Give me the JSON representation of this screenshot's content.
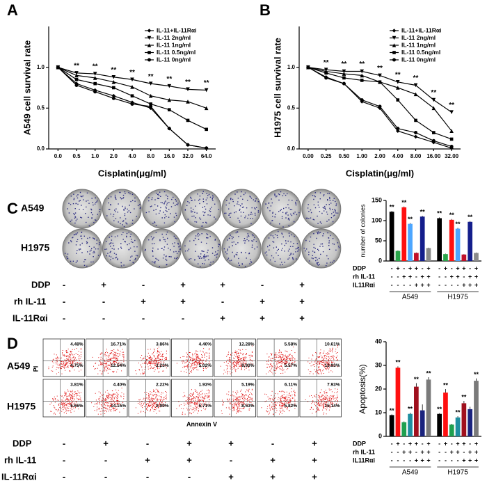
{
  "panel_labels": [
    "A",
    "B",
    "C",
    "D"
  ],
  "chart_data": [
    {
      "type": "line",
      "y_label": "A549 cell survival rate",
      "x_label": "Cisplatin(μg/ml)",
      "categories": [
        "0.0",
        "0.5",
        "1.0",
        "2.0",
        "4.0",
        "8.0",
        "16.0",
        "32.0",
        "64.0"
      ],
      "ylim": [
        0,
        1.5
      ],
      "yticks": [
        {
          "value": 0,
          "label": "0.0"
        },
        {
          "value": 0.5,
          "label": "0.5"
        },
        {
          "value": 1,
          "label": "1.0"
        }
      ],
      "legend": "upper right",
      "series": [
        {
          "name": "IL-11+IL-11Rαi",
          "color": "#000000",
          "marker": "diamond",
          "values": [
            1,
            0.8,
            0.72,
            0.65,
            0.57,
            0.5,
            0.25,
            0.05,
            0.01
          ]
        },
        {
          "name": "IL-11 2ng/ml",
          "color": "#000000",
          "marker": "triangle-down",
          "values": [
            1,
            0.93,
            0.92,
            0.88,
            0.85,
            0.8,
            0.77,
            0.73,
            0.72
          ]
        },
        {
          "name": "IL-11 1ng/ml",
          "color": "#000000",
          "marker": "triangle-up",
          "values": [
            1,
            0.9,
            0.87,
            0.82,
            0.76,
            0.65,
            0.6,
            0.58,
            0.5
          ]
        },
        {
          "name": "IL-11 0.5ng/ml",
          "color": "#000000",
          "marker": "square",
          "values": [
            1,
            0.85,
            0.8,
            0.75,
            0.65,
            0.55,
            0.48,
            0.35,
            0.24
          ]
        },
        {
          "name": "IL-11 0ng/ml",
          "color": "#000000",
          "marker": "circle",
          "values": [
            1,
            0.78,
            0.7,
            0.62,
            0.55,
            0.52,
            0.25,
            0.05,
            0.01
          ]
        }
      ],
      "significance": [
        null,
        "**",
        "**",
        "**",
        "**",
        "**",
        "**",
        "**",
        "**"
      ]
    },
    {
      "type": "line",
      "y_label": "H1975 cell survival rate",
      "x_label": "Cisplatin(μg/ml)",
      "categories": [
        "0.00",
        "0.25",
        "0.50",
        "1.00",
        "2.00",
        "4.00",
        "8.00",
        "16.00",
        "32.00"
      ],
      "ylim": [
        0,
        1.5
      ],
      "yticks": [
        {
          "value": 0,
          "label": "0.0"
        },
        {
          "value": 0.5,
          "label": "0.5"
        },
        {
          "value": 1,
          "label": "1.0"
        }
      ],
      "legend": "upper right",
      "series": [
        {
          "name": "IL-11+IL-11Rαi",
          "color": "#000000",
          "marker": "diamond",
          "values": [
            1,
            0.88,
            0.8,
            0.58,
            0.5,
            0.22,
            0.15,
            0.08,
            0.01
          ]
        },
        {
          "name": "IL-11 2ng/ml",
          "color": "#000000",
          "marker": "triangle-down",
          "values": [
            1,
            0.97,
            0.95,
            0.95,
            0.9,
            0.82,
            0.78,
            0.6,
            0.45
          ]
        },
        {
          "name": "IL-11 1ng/ml",
          "color": "#000000",
          "marker": "triangle-up",
          "values": [
            1,
            0.95,
            0.92,
            0.9,
            0.82,
            0.75,
            0.67,
            0.5,
            0.22
          ]
        },
        {
          "name": "IL-11 0.5ng/ml",
          "color": "#000000",
          "marker": "square",
          "values": [
            1,
            0.93,
            0.87,
            0.84,
            0.82,
            0.6,
            0.35,
            0.2,
            0.12
          ]
        },
        {
          "name": "IL-11 0ng/ml",
          "color": "#000000",
          "marker": "circle",
          "values": [
            1,
            0.87,
            0.8,
            0.6,
            0.52,
            0.25,
            0.2,
            0.1,
            0.03
          ]
        }
      ],
      "significance": [
        null,
        "**",
        "**",
        "**",
        "**",
        "**",
        "**",
        "**",
        "**"
      ]
    },
    {
      "type": "bar",
      "y_label": "number of colonies",
      "categories": [
        "A549",
        "H1975"
      ],
      "ylim": [
        0,
        150
      ],
      "yticks": [
        0,
        50,
        100,
        150
      ],
      "series": [
        {
          "color": "#000000",
          "values": [
            122,
            106
          ],
          "errors": [
            2,
            2
          ],
          "markers": [
            "**",
            "**"
          ]
        },
        {
          "color": "#2aa54a",
          "values": [
            25,
            17
          ],
          "errors": [
            1,
            1
          ],
          "markers": [
            null,
            null
          ]
        },
        {
          "color": "#ff1010",
          "values": [
            133,
            102
          ],
          "errors": [
            2,
            2
          ],
          "markers": [
            "**",
            "**"
          ]
        },
        {
          "color": "#4da6ff",
          "values": [
            92,
            80
          ],
          "errors": [
            2,
            2
          ],
          "markers": [
            "**",
            "**"
          ]
        },
        {
          "color": "#c0102a",
          "values": [
            20,
            16
          ],
          "errors": [
            1,
            1
          ],
          "markers": [
            null,
            null
          ]
        },
        {
          "color": "#141e8c",
          "values": [
            110,
            97
          ],
          "errors": [
            2,
            2
          ],
          "markers": [
            "**",
            "**"
          ]
        },
        {
          "color": "#8a8a8a",
          "values": [
            32,
            20
          ],
          "errors": [
            1,
            1
          ],
          "markers": [
            null,
            null
          ]
        }
      ],
      "conditions": [
        {
          "label": "DDP",
          "signs": [
            "-",
            "+",
            "-",
            "+",
            "+",
            "-",
            "+"
          ]
        },
        {
          "label": "rh IL-11",
          "signs": [
            "-",
            "-",
            "+",
            "+",
            "-",
            "+",
            "+"
          ]
        },
        {
          "label": "IL11Rαi",
          "signs": [
            "-",
            "-",
            "-",
            "-",
            "+",
            "+",
            "+"
          ]
        }
      ]
    },
    {
      "type": "bar",
      "y_label": "Apoptosis(%)",
      "categories": [
        "A549",
        "H1975"
      ],
      "ylim": [
        0,
        40
      ],
      "yticks": [
        0,
        10,
        20,
        30,
        40
      ],
      "series": [
        {
          "color": "#000000",
          "values": [
            9,
            9.5
          ],
          "errors": [
            0.3,
            0.3
          ],
          "markers": [
            "**",
            "**"
          ]
        },
        {
          "color": "#ff1010",
          "values": [
            29,
            18.5
          ],
          "errors": [
            0.6,
            1.5
          ],
          "markers": [
            "**",
            "**"
          ]
        },
        {
          "color": "#1fa050",
          "values": [
            6,
            5
          ],
          "errors": [
            0.3,
            0.3
          ],
          "markers": [
            null,
            null
          ]
        },
        {
          "color": "#1e8fa0",
          "values": [
            9.5,
            8
          ],
          "errors": [
            0.5,
            0.5
          ],
          "markers": [
            "**",
            "**"
          ]
        },
        {
          "color": "#a0101e",
          "values": [
            21,
            14
          ],
          "errors": [
            1.5,
            1
          ],
          "markers": [
            "**",
            "**"
          ]
        },
        {
          "color": "#1a237e",
          "values": [
            11,
            11.5
          ],
          "errors": [
            2.5,
            1
          ],
          "markers": [
            null,
            null
          ]
        },
        {
          "color": "#7a7a7a",
          "values": [
            24,
            23.5
          ],
          "errors": [
            1,
            1
          ],
          "markers": [
            "**",
            "**"
          ]
        }
      ],
      "conditions": [
        {
          "label": "DDP",
          "signs": [
            "-",
            "+",
            "-",
            "+",
            "+",
            "-",
            "+"
          ]
        },
        {
          "label": "rh IL-11",
          "signs": [
            "-",
            "-",
            "+",
            "+",
            "-",
            "+",
            "+"
          ]
        },
        {
          "label": "IL11Rαi",
          "signs": [
            "-",
            "-",
            "-",
            "-",
            "+",
            "+",
            "+"
          ]
        }
      ]
    }
  ],
  "colony_assay": {
    "rows": [
      "A549",
      "H1975"
    ],
    "conditions": [
      {
        "label": "DDP",
        "signs": [
          "-",
          "+",
          "-",
          "+",
          "+",
          "-",
          "+"
        ]
      },
      {
        "label": "rh IL-11",
        "signs": [
          "-",
          "-",
          "+",
          "+",
          "-",
          "+",
          "+"
        ]
      },
      {
        "label": "IL-11Rαi",
        "signs": [
          "-",
          "-",
          "-",
          "-",
          "+",
          "+",
          "+"
        ]
      }
    ]
  },
  "flow_cytometry": {
    "y_label": "PI",
    "x_label": "Annexin V",
    "rows": [
      {
        "label": "A549",
        "upper_right": [
          "4.48%",
          "16.71%",
          "3.86%",
          "4.40%",
          "12.28%",
          "5.58%",
          "10.61%"
        ],
        "lower_right": [
          "4.75%",
          "12.54%",
          "2.23%",
          "5.02%",
          "8.93%",
          "5.57%",
          "13.93%"
        ]
      },
      {
        "label": "H1975",
        "upper_right": [
          "3.81%",
          "4.40%",
          "2.22%",
          "1.93%",
          "5.19%",
          "6.11%",
          "7.93%"
        ],
        "lower_right": [
          "5.66%",
          "14.15%",
          "2.99%",
          "5.71%",
          "8.53%",
          "5.82%",
          "15.14%"
        ]
      }
    ],
    "conditions": [
      {
        "label": "DDP",
        "signs": [
          "-",
          "+",
          "-",
          "+",
          "+",
          "-",
          "+"
        ]
      },
      {
        "label": "rh IL-11",
        "signs": [
          "-",
          "-",
          "+",
          "+",
          "-",
          "+",
          "+"
        ]
      },
      {
        "label": "IL-11Rαi",
        "signs": [
          "-",
          "-",
          "-",
          "-",
          "+",
          "+",
          "+"
        ]
      }
    ]
  }
}
